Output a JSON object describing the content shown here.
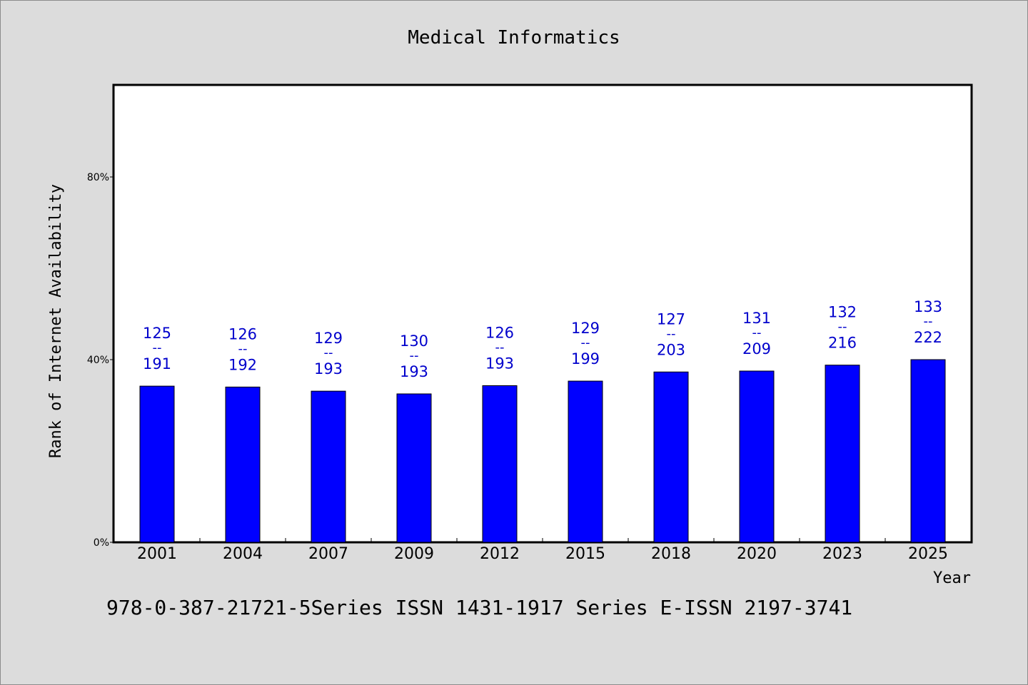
{
  "chart_data": {
    "type": "bar",
    "title": "Medical Informatics",
    "xlabel": "Year",
    "ylabel": "Rank of Internet Availability",
    "categories": [
      "2001",
      "2004",
      "2007",
      "2009",
      "2012",
      "2015",
      "2018",
      "2020",
      "2023",
      "2025"
    ],
    "values": [
      0.342,
      0.34,
      0.331,
      0.325,
      0.343,
      0.353,
      0.373,
      0.375,
      0.388,
      0.4
    ],
    "labels_top": [
      "125",
      "126",
      "129",
      "130",
      "126",
      "129",
      "127",
      "131",
      "132",
      "133"
    ],
    "labels_bottom": [
      "191",
      "192",
      "193",
      "193",
      "193",
      "199",
      "203",
      "209",
      "216",
      "222"
    ],
    "label_separator": "--",
    "yticks": [
      "0%",
      "40%",
      "80%"
    ],
    "ytick_values": [
      0,
      0.4,
      0.8
    ],
    "ylim": [
      0,
      1.0
    ],
    "grid": false,
    "bar_color": "#0000ff",
    "label_color": "#0000cc"
  },
  "footer": "978-0-387-21721-5Series ISSN 1431-1917 Series E-ISSN 2197-3741"
}
